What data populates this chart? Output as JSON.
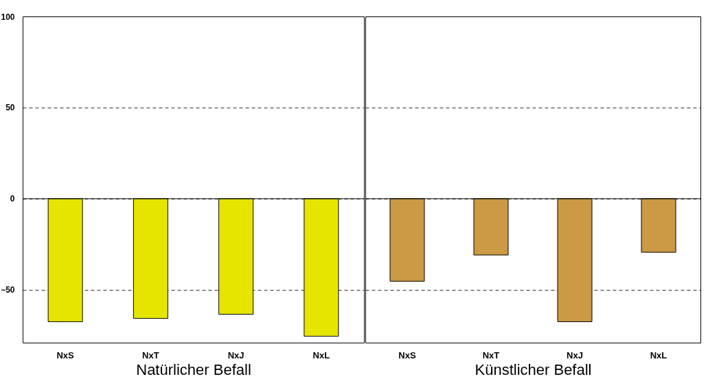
{
  "chart_data": [
    {
      "type": "bar",
      "xlabel": "Natürlicher Befall",
      "categories": [
        "NxS",
        "NxT",
        "NxJ",
        "NxL"
      ],
      "values": [
        -67.5,
        -65.7,
        -63.4,
        -75.5
      ],
      "color": "#e5e500",
      "ylim": [
        -79,
        100
      ],
      "yticks": [
        -50,
        0,
        50,
        100
      ],
      "grid": "y"
    },
    {
      "type": "bar",
      "xlabel": "Künstlicher Befall",
      "categories": [
        "NxS",
        "NxT",
        "NxJ",
        "NxL"
      ],
      "values": [
        -45.3,
        -30.9,
        -67.5,
        -29.4
      ],
      "color": "#cc9944",
      "ylim": [
        -79,
        100
      ],
      "yticks": [
        -50,
        0,
        50,
        100
      ],
      "grid": "y",
      "tick_labels": "x"
    }
  ]
}
